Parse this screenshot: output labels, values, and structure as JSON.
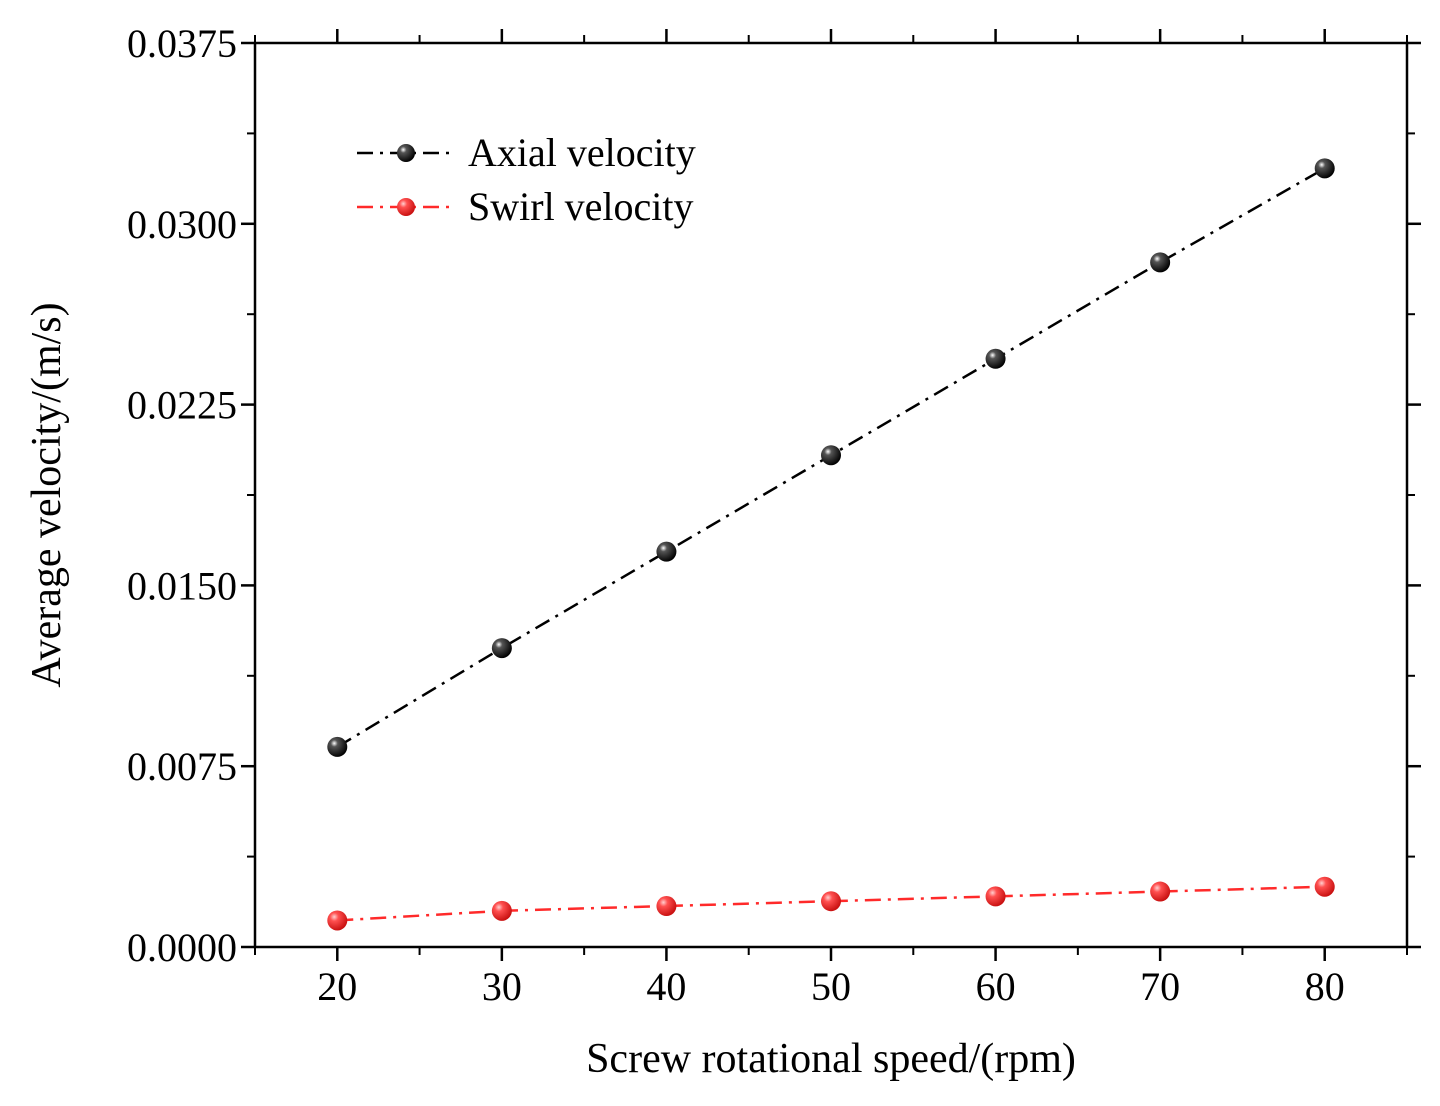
{
  "chart_data": {
    "type": "line",
    "title": "",
    "xlabel": "Screw rotational speed/(rpm)",
    "ylabel": "Average velocity/(m/s)",
    "x": [
      20,
      30,
      40,
      50,
      60,
      70,
      80
    ],
    "xlim": [
      15,
      85
    ],
    "ylim": [
      0.0,
      0.0375
    ],
    "xticks": [
      20,
      30,
      40,
      50,
      60,
      70,
      80
    ],
    "xtick_labels": [
      "20",
      "30",
      "40",
      "50",
      "60",
      "70",
      "80"
    ],
    "yticks": [
      0.0,
      0.0075,
      0.015,
      0.0225,
      0.03,
      0.0375
    ],
    "ytick_labels": [
      "0.0000",
      "0.0075",
      "0.0150",
      "0.0225",
      "0.0300",
      "0.0375"
    ],
    "grid": false,
    "legend_position": "top-left",
    "series": [
      {
        "name": "Axial velocity",
        "color": "#000000",
        "line_style": "dash-dot",
        "marker": "sphere",
        "values": [
          0.0083,
          0.0124,
          0.0164,
          0.0204,
          0.0244,
          0.0284,
          0.0323
        ]
      },
      {
        "name": "Swirl velocity",
        "color": "#ff2a2a",
        "line_style": "dash-dot",
        "marker": "sphere",
        "values": [
          0.0011,
          0.0015,
          0.0017,
          0.0019,
          0.0021,
          0.0023,
          0.0025
        ]
      }
    ]
  }
}
